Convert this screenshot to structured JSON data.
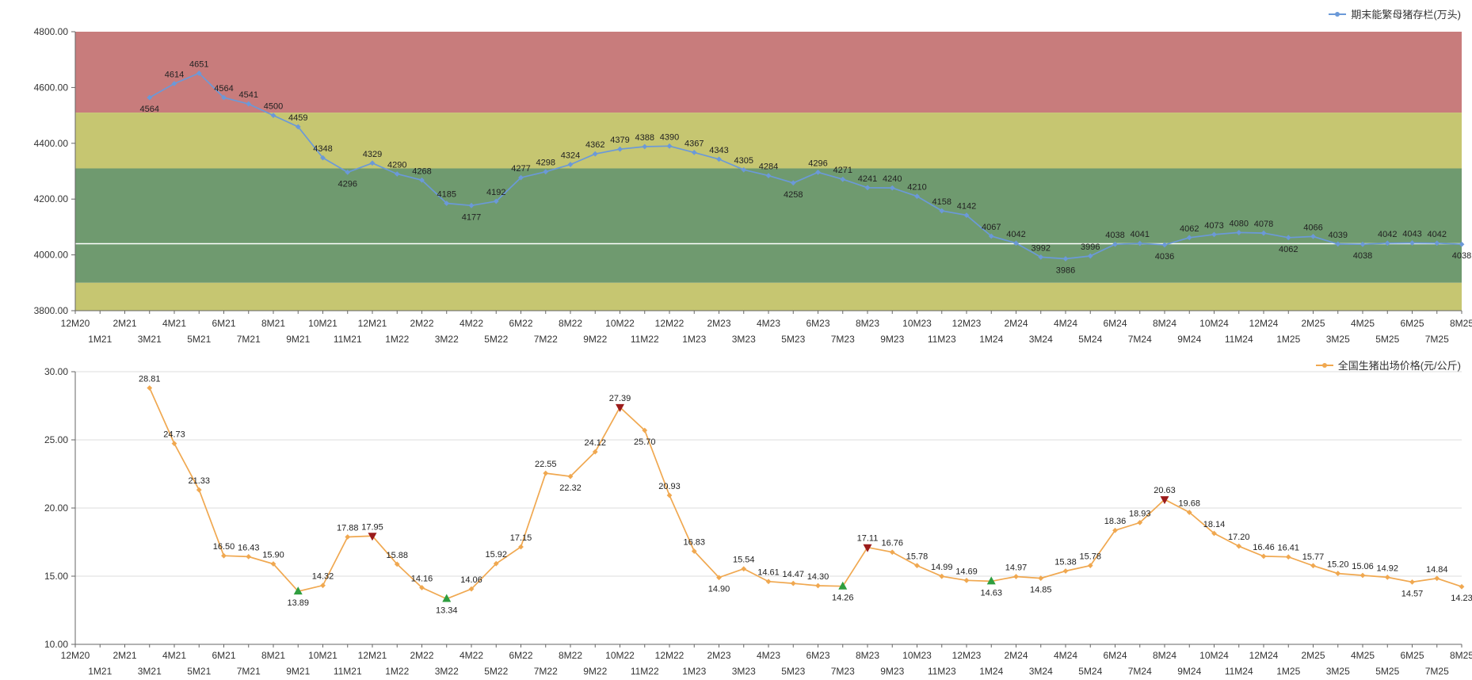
{
  "x_categories": [
    "12M20",
    "1M21",
    "2M21",
    "3M21",
    "4M21",
    "5M21",
    "6M21",
    "7M21",
    "8M21",
    "9M21",
    "10M21",
    "11M21",
    "12M21",
    "1M22",
    "2M22",
    "3M22",
    "4M22",
    "5M22",
    "6M22",
    "7M22",
    "8M22",
    "9M22",
    "10M22",
    "11M22",
    "12M22",
    "1M23",
    "2M23",
    "3M23",
    "4M23",
    "5M23",
    "6M23",
    "7M23",
    "8M23",
    "9M23",
    "10M23",
    "11M23",
    "12M23",
    "1M24",
    "2M24",
    "3M24",
    "4M24",
    "5M24",
    "6M24",
    "7M24",
    "8M24",
    "9M24",
    "10M24",
    "11M24",
    "12M24",
    "1M25",
    "2M25",
    "3M25",
    "4M25",
    "5M25",
    "6M25",
    "7M25",
    "8M25"
  ],
  "chart_data": [
    {
      "type": "line",
      "legend": "期末能繁母猪存栏(万头)",
      "line_color": "#6b99d8",
      "label_color": "#222222",
      "y_min": 3800,
      "y_max": 4800,
      "y_ticks": [
        4800,
        4600,
        4400,
        4200,
        4000,
        3800
      ],
      "y_tick_decimals": 2,
      "label_decimals": 0,
      "grid": false,
      "bands": [
        {
          "from": 4510,
          "to": 4800,
          "color": "#c87c7c"
        },
        {
          "from": 4310,
          "to": 4510,
          "color": "#c6c671"
        },
        {
          "from": 3900,
          "to": 4310,
          "color": "#6f9a6f"
        },
        {
          "from": 3800,
          "to": 3900,
          "color": "#c6c671"
        }
      ],
      "reference_line": {
        "value": 4040,
        "color": "#ffffff"
      },
      "start_month": "3M21",
      "values": [
        4564,
        4614,
        4651,
        4564,
        4541,
        4500,
        4459,
        4348,
        4296,
        4329,
        4290,
        4268,
        4185,
        4177,
        4192,
        4277,
        4298,
        4324,
        4362,
        4379,
        4388,
        4390,
        4367,
        4343,
        4305,
        4284,
        4258,
        4296,
        4271,
        4241,
        4240,
        4210,
        4158,
        4142,
        4067,
        4042,
        3992,
        3986,
        3996,
        4038,
        4041,
        4036,
        4062,
        4073,
        4080,
        4078,
        4062,
        4066,
        4039,
        4038,
        4042,
        4043,
        4042,
        4038
      ],
      "labels_below": [
        "3M21",
        "11M21",
        "4M22",
        "5M23",
        "4M24",
        "8M24",
        "1M25",
        "4M25",
        "8M25"
      ],
      "special_markers": []
    },
    {
      "type": "line",
      "legend": "全国生猪出场价格(元/公斤)",
      "line_color": "#f0a850",
      "label_color": "#222222",
      "y_min": 10,
      "y_max": 30,
      "y_ticks": [
        30,
        25,
        20,
        15,
        10
      ],
      "y_tick_decimals": 2,
      "label_decimals": 2,
      "grid": true,
      "bands": [],
      "reference_line": null,
      "start_month": "3M21",
      "values": [
        28.81,
        24.73,
        21.33,
        16.5,
        16.43,
        15.9,
        13.89,
        14.32,
        17.88,
        17.95,
        15.88,
        14.16,
        13.34,
        14.06,
        15.92,
        17.15,
        22.55,
        22.32,
        24.12,
        27.39,
        25.7,
        20.93,
        16.83,
        14.9,
        15.54,
        14.61,
        14.47,
        14.3,
        14.26,
        17.11,
        16.76,
        15.78,
        14.99,
        14.69,
        14.63,
        14.97,
        14.85,
        15.38,
        15.78,
        18.36,
        18.93,
        20.63,
        19.68,
        18.14,
        17.2,
        16.46,
        16.41,
        15.77,
        15.2,
        15.06,
        14.92,
        14.57,
        14.84,
        14.23
      ],
      "labels_below": [
        "9M21",
        "3M22",
        "8M22",
        "11M22",
        "2M23",
        "7M23",
        "1M24",
        "3M24",
        "6M25",
        "8M25"
      ],
      "special_markers": [
        {
          "month": "9M21",
          "shape": "triangle-up",
          "color": "#2f9e3f"
        },
        {
          "month": "3M22",
          "shape": "triangle-up",
          "color": "#2f9e3f"
        },
        {
          "month": "7M23",
          "shape": "triangle-up",
          "color": "#2f9e3f"
        },
        {
          "month": "1M24",
          "shape": "triangle-up",
          "color": "#2f9e3f"
        },
        {
          "month": "12M21",
          "shape": "triangle-down",
          "color": "#9b1b1b"
        },
        {
          "month": "10M22",
          "shape": "triangle-down",
          "color": "#9b1b1b"
        },
        {
          "month": "8M23",
          "shape": "triangle-down",
          "color": "#9b1b1b"
        },
        {
          "month": "8M24",
          "shape": "triangle-down",
          "color": "#9b1b1b"
        }
      ]
    }
  ]
}
